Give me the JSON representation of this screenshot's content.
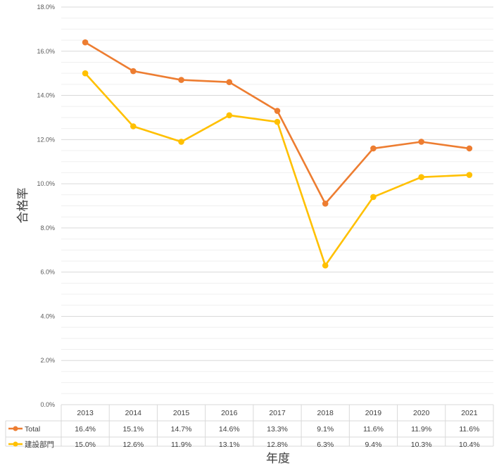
{
  "chart_data": {
    "type": "line",
    "categories": [
      "2013",
      "2014",
      "2015",
      "2016",
      "2017",
      "2018",
      "2019",
      "2020",
      "2021"
    ],
    "series": [
      {
        "name": "Total",
        "color": "#ED7D31",
        "values": [
          16.4,
          15.1,
          14.7,
          14.6,
          13.3,
          9.1,
          11.6,
          11.9,
          11.6
        ],
        "labels": [
          "16.4%",
          "15.1%",
          "14.7%",
          "14.6%",
          "13.3%",
          "9.1%",
          "11.6%",
          "11.9%",
          "11.6%"
        ]
      },
      {
        "name": "建設部門",
        "color": "#FFC000",
        "values": [
          15.0,
          12.6,
          11.9,
          13.1,
          12.8,
          6.3,
          9.4,
          10.3,
          10.4
        ],
        "labels": [
          "15.0%",
          "12.6%",
          "11.9%",
          "13.1%",
          "12.8%",
          "6.3%",
          "9.4%",
          "10.3%",
          "10.4%"
        ]
      }
    ],
    "ylim": [
      0,
      18
    ],
    "y_ticks": [
      "0.0%",
      "2.0%",
      "4.0%",
      "6.0%",
      "8.0%",
      "10.0%",
      "12.0%",
      "14.0%",
      "16.0%",
      "18.0%"
    ],
    "xlabel": "年度",
    "ylabel": "合格率",
    "grid": true,
    "legend": "data-table"
  }
}
